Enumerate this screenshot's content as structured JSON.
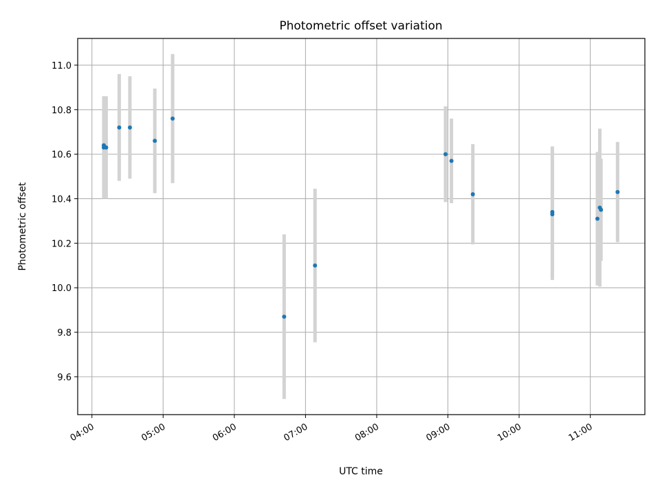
{
  "chart_data": {
    "type": "scatter",
    "title": "Photometric offset variation",
    "xlabel": "UTC time",
    "ylabel": "Photometric offset",
    "x_ticks": [
      "04:00",
      "05:00",
      "06:00",
      "07:00",
      "08:00",
      "09:00",
      "10:00",
      "11:00"
    ],
    "y_ticks": [
      "9.6",
      "9.8",
      "10.0",
      "10.2",
      "10.4",
      "10.6",
      "10.8",
      "11.0"
    ],
    "xlim": [
      "03:48",
      "11:46"
    ],
    "ylim": [
      9.43,
      11.12
    ],
    "grid": true,
    "legend": "none",
    "point_color": "#1f77b4",
    "errorbar_color": "#d3d3d3",
    "points": [
      {
        "x": "04:10",
        "y": 10.64,
        "err": 0.22
      },
      {
        "x": "04:10",
        "y": 10.63,
        "err": 0.23
      },
      {
        "x": "04:12",
        "y": 10.63,
        "err": 0.23
      },
      {
        "x": "04:23",
        "y": 10.72,
        "err": 0.24
      },
      {
        "x": "04:32",
        "y": 10.72,
        "err": 0.23
      },
      {
        "x": "04:53",
        "y": 10.66,
        "err": 0.235
      },
      {
        "x": "05:08",
        "y": 10.76,
        "err": 0.29
      },
      {
        "x": "06:42",
        "y": 9.87,
        "err": 0.37
      },
      {
        "x": "07:08",
        "y": 10.1,
        "err": 0.345
      },
      {
        "x": "08:58",
        "y": 10.6,
        "err": 0.215
      },
      {
        "x": "09:03",
        "y": 10.57,
        "err": 0.19
      },
      {
        "x": "09:21",
        "y": 10.42,
        "err": 0.225
      },
      {
        "x": "10:28",
        "y": 10.34,
        "err": 0.295
      },
      {
        "x": "10:28",
        "y": 10.33,
        "err": 0.295
      },
      {
        "x": "11:06",
        "y": 10.31,
        "err": 0.3
      },
      {
        "x": "11:08",
        "y": 10.36,
        "err": 0.355
      },
      {
        "x": "11:09",
        "y": 10.35,
        "err": 0.23
      },
      {
        "x": "11:23",
        "y": 10.43,
        "err": 0.225
      }
    ]
  }
}
